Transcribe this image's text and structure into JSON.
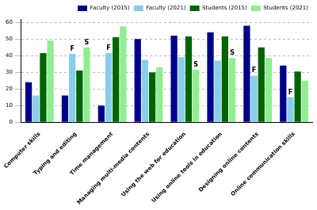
{
  "chart_data": {
    "type": "bar",
    "categories": [
      "Computer skills",
      "Typing and editing",
      "Time management",
      "Managing multi-media contents",
      "Using the web for education",
      "Using online tools in education",
      "Designing online contents",
      "Online communication skills"
    ],
    "series": [
      {
        "name": "Faculty (2015)",
        "color": "#00008b",
        "values": [
          24,
          16,
          10,
          50,
          52,
          54,
          58,
          34
        ]
      },
      {
        "name": "Faculty (2021)",
        "color": "#87ceeb",
        "values": [
          16,
          41,
          41.5,
          37.5,
          39,
          37,
          28,
          15
        ]
      },
      {
        "name": "Students (2015)",
        "color": "#006400",
        "values": [
          41.5,
          31,
          51,
          30,
          51.5,
          51.5,
          45,
          30.5
        ]
      },
      {
        "name": "Students (2021)",
        "color": "#90ee90",
        "values": [
          49,
          45,
          57.5,
          33,
          31.5,
          38.5,
          38.5,
          25
        ]
      }
    ],
    "annotations": [
      {
        "text": "F",
        "series": "Faculty (2021)",
        "category": "Typing and editing"
      },
      {
        "text": "S",
        "series": "Students (2021)",
        "category": "Typing and editing"
      },
      {
        "text": "F",
        "series": "Faculty (2021)",
        "category": "Time management"
      },
      {
        "text": "S",
        "series": "Students (2021)",
        "category": "Using the web for education"
      },
      {
        "text": "S",
        "series": "Students (2021)",
        "category": "Using online tools in education"
      },
      {
        "text": "F",
        "series": "Faculty (2021)",
        "category": "Designing online contents"
      },
      {
        "text": "F",
        "series": "Faculty (2021)",
        "category": "Online communication skills"
      }
    ],
    "ylim": [
      0,
      62
    ],
    "yticks": [
      0,
      10,
      20,
      30,
      40,
      50,
      60
    ],
    "grid": true,
    "legend": "upper right"
  }
}
